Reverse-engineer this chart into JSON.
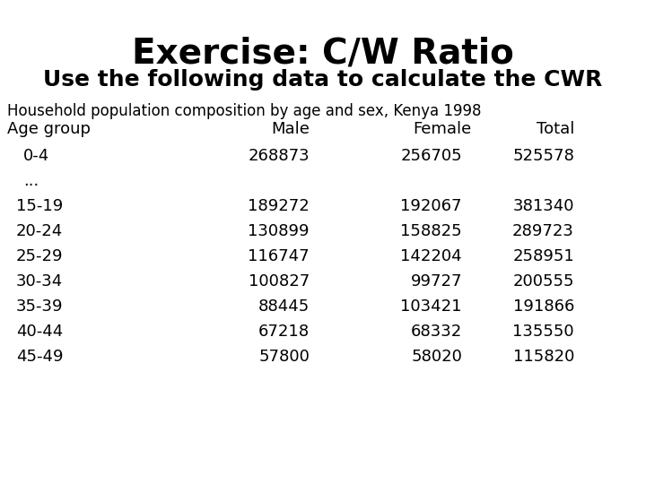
{
  "title": "Exercise: C/W Ratio",
  "subtitle": "Use the following data to calculate the CWR",
  "caption": "Household population composition by age and sex, Kenya 1998",
  "header": [
    "Age group",
    "Male",
    "Female",
    "Total"
  ],
  "row_04": [
    "0-4",
    "268873",
    "256705",
    "525578"
  ],
  "ellipsis": "...",
  "rows": [
    [
      "15-19",
      "189272",
      "192067",
      "381340"
    ],
    [
      "20-24",
      "130899",
      "158825",
      "289723"
    ],
    [
      "25-29",
      "116747",
      "142204",
      "258951"
    ],
    [
      "30-34",
      "100827",
      "99727",
      "200555"
    ],
    [
      "35-39",
      "88445",
      "103421",
      "191866"
    ],
    [
      "40-44",
      "67218",
      "68332",
      "135550"
    ],
    [
      "45-49",
      "57800",
      "58020",
      "115820"
    ]
  ],
  "background_color": "#ffffff",
  "text_color": "#000000",
  "title_fontsize": 28,
  "subtitle_fontsize": 18,
  "caption_fontsize": 12,
  "table_fontsize": 13
}
